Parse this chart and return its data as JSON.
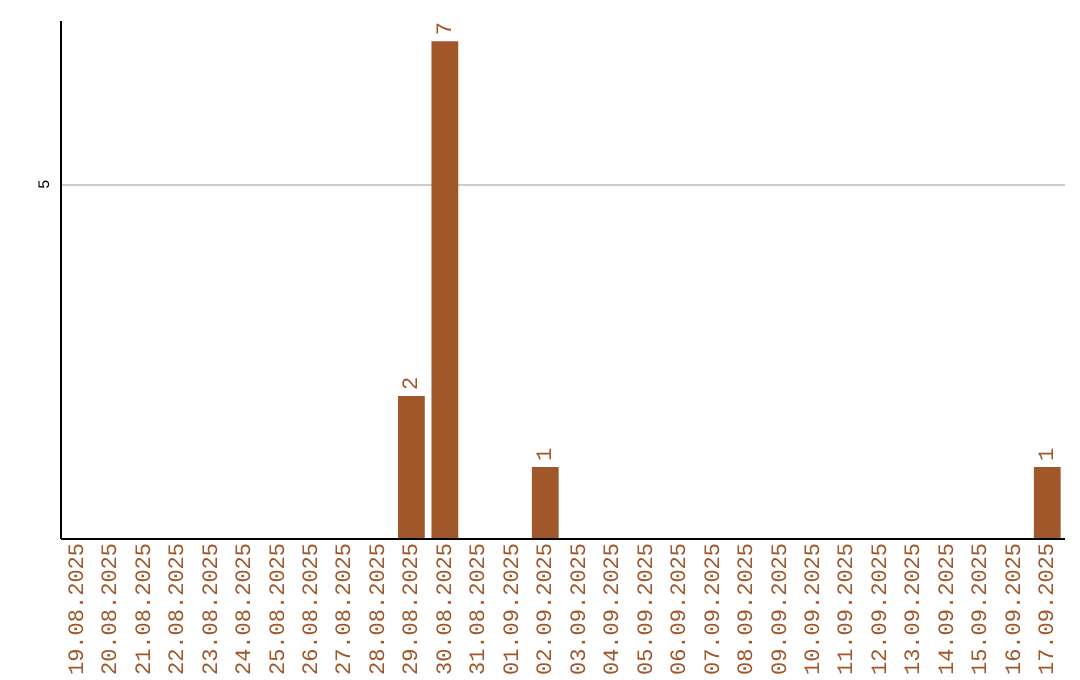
{
  "chart_data": {
    "type": "bar",
    "categories": [
      "19.08.2025",
      "20.08.2025",
      "21.08.2025",
      "22.08.2025",
      "23.08.2025",
      "24.08.2025",
      "25.08.2025",
      "26.08.2025",
      "27.08.2025",
      "28.08.2025",
      "29.08.2025",
      "30.08.2025",
      "31.08.2025",
      "01.09.2025",
      "02.09.2025",
      "03.09.2025",
      "04.09.2025",
      "05.09.2025",
      "06.09.2025",
      "07.09.2025",
      "08.09.2025",
      "09.09.2025",
      "10.09.2025",
      "11.09.2025",
      "12.09.2025",
      "13.09.2025",
      "14.09.2025",
      "15.09.2025",
      "16.09.2025",
      "17.09.2025"
    ],
    "values": [
      0,
      0,
      0,
      0,
      0,
      0,
      0,
      0,
      0,
      0,
      2,
      7,
      0,
      0,
      1,
      0,
      0,
      0,
      0,
      0,
      0,
      0,
      0,
      0,
      0,
      0,
      0,
      0,
      0,
      1
    ],
    "value_labels": [
      null,
      null,
      null,
      null,
      null,
      null,
      null,
      null,
      null,
      null,
      "2",
      "7",
      null,
      null,
      "1",
      null,
      null,
      null,
      null,
      null,
      null,
      null,
      null,
      null,
      null,
      null,
      null,
      null,
      null,
      "1"
    ],
    "color": "#a0572a",
    "ylim": [
      0,
      7.3
    ],
    "yticks": [
      5
    ],
    "grid": "y"
  }
}
